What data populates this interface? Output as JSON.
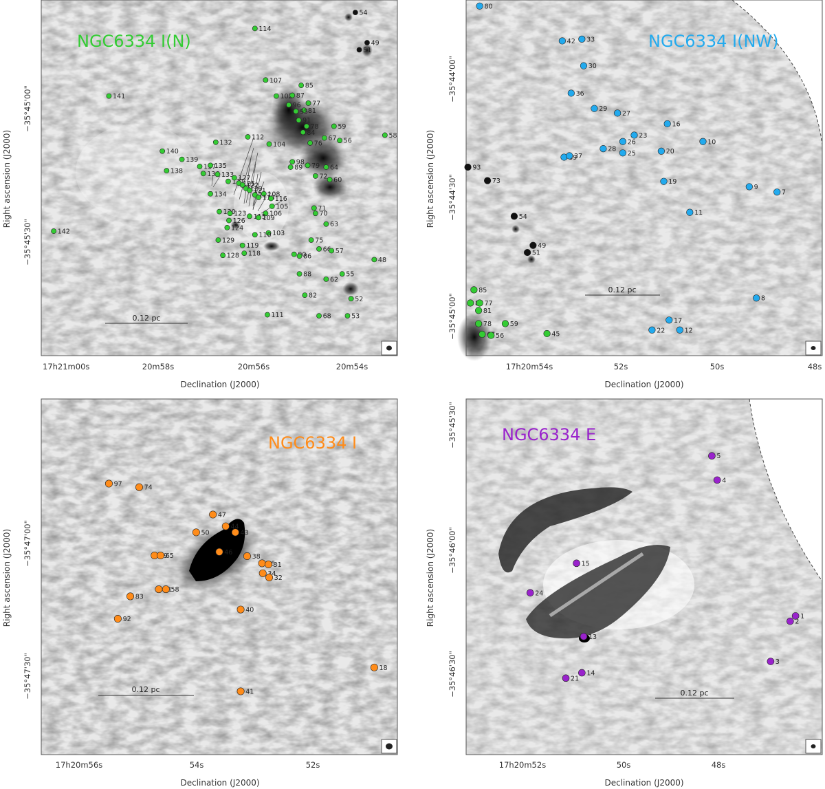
{
  "chart_data": [
    {
      "type": "scatter",
      "title": "NGC6334 I(N)",
      "title_color": "#33cc33",
      "marker_color": "#33cc33",
      "xlabel": "Declination (J2000)",
      "ylabel": "Right ascension (J2000)",
      "x_ticks": [
        "17h21m00s",
        "20m58s",
        "20m56s",
        "20m54s"
      ],
      "y_ticks": [
        "−35°45'00\"",
        "−35°45'30\""
      ],
      "scale_bar": "0.12 pc",
      "sources": [
        {
          "id": "54",
          "u": 0.882,
          "v": 0.035,
          "c": "#111111"
        },
        {
          "id": "49",
          "u": 0.915,
          "v": 0.12,
          "c": "#111111"
        },
        {
          "id": "51",
          "u": 0.893,
          "v": 0.14,
          "c": "#111111"
        },
        {
          "id": "114",
          "u": 0.6,
          "v": 0.08,
          "c": "#33cc33"
        },
        {
          "id": "141",
          "u": 0.19,
          "v": 0.27,
          "c": "#33cc33"
        },
        {
          "id": "107",
          "u": 0.63,
          "v": 0.225,
          "c": "#33cc33"
        },
        {
          "id": "85",
          "u": 0.73,
          "v": 0.24,
          "c": "#33cc33"
        },
        {
          "id": "102",
          "u": 0.66,
          "v": 0.27,
          "c": "#33cc33"
        },
        {
          "id": "87",
          "u": 0.705,
          "v": 0.268,
          "c": "#33cc33"
        },
        {
          "id": "77",
          "u": 0.75,
          "v": 0.29,
          "c": "#33cc33"
        },
        {
          "id": "96",
          "u": 0.695,
          "v": 0.295,
          "c": "#33cc33"
        },
        {
          "id": "81",
          "u": 0.738,
          "v": 0.31,
          "c": "#33cc33"
        },
        {
          "id": "95",
          "u": 0.715,
          "v": 0.313,
          "c": "#33cc33"
        },
        {
          "id": "91",
          "u": 0.723,
          "v": 0.338,
          "c": "#33cc33"
        },
        {
          "id": "78",
          "u": 0.745,
          "v": 0.355,
          "c": "#33cc33"
        },
        {
          "id": "59",
          "u": 0.822,
          "v": 0.355,
          "c": "#33cc33"
        },
        {
          "id": "84",
          "u": 0.735,
          "v": 0.372,
          "c": "#33cc33"
        },
        {
          "id": "67",
          "u": 0.795,
          "v": 0.388,
          "c": "#33cc33"
        },
        {
          "id": "56",
          "u": 0.838,
          "v": 0.395,
          "c": "#33cc33"
        },
        {
          "id": "76",
          "u": 0.755,
          "v": 0.402,
          "c": "#33cc33"
        },
        {
          "id": "58",
          "u": 0.965,
          "v": 0.38,
          "c": "#33cc33"
        },
        {
          "id": "112",
          "u": 0.58,
          "v": 0.385,
          "c": "#33cc33"
        },
        {
          "id": "104",
          "u": 0.64,
          "v": 0.405,
          "c": "#33cc33"
        },
        {
          "id": "132",
          "u": 0.49,
          "v": 0.4,
          "c": "#33cc33"
        },
        {
          "id": "140",
          "u": 0.34,
          "v": 0.425,
          "c": "#33cc33"
        },
        {
          "id": "139",
          "u": 0.395,
          "v": 0.448,
          "c": "#33cc33"
        },
        {
          "id": "98",
          "u": 0.705,
          "v": 0.455,
          "c": "#33cc33"
        },
        {
          "id": "79",
          "u": 0.748,
          "v": 0.465,
          "c": "#33cc33"
        },
        {
          "id": "89",
          "u": 0.7,
          "v": 0.47,
          "c": "#33cc33"
        },
        {
          "id": "64",
          "u": 0.8,
          "v": 0.47,
          "c": "#33cc33"
        },
        {
          "id": "72",
          "u": 0.77,
          "v": 0.495,
          "c": "#33cc33"
        },
        {
          "id": "60",
          "u": 0.81,
          "v": 0.505,
          "c": "#33cc33"
        },
        {
          "id": "137",
          "u": 0.445,
          "v": 0.468,
          "c": "#33cc33"
        },
        {
          "id": "135",
          "u": 0.475,
          "v": 0.465,
          "c": "#33cc33"
        },
        {
          "id": "138",
          "u": 0.352,
          "v": 0.48,
          "c": "#33cc33"
        },
        {
          "id": "136",
          "u": 0.455,
          "v": 0.488,
          "c": "#33cc33"
        },
        {
          "id": "133",
          "u": 0.495,
          "v": 0.49,
          "c": "#33cc33"
        },
        {
          "id": "131",
          "u": 0.525,
          "v": 0.51,
          "c": "#33cc33"
        },
        {
          "id": "127",
          "u": 0.542,
          "v": 0.5,
          "c": "#33cc33"
        },
        {
          "id": "125",
          "u": 0.555,
          "v": 0.515,
          "c": "#33cc33"
        },
        {
          "id": "122",
          "u": 0.565,
          "v": 0.52,
          "c": "#33cc33"
        },
        {
          "id": "120",
          "u": 0.575,
          "v": 0.53,
          "c": "#33cc33"
        },
        {
          "id": "121",
          "u": 0.585,
          "v": 0.535,
          "c": "#33cc33"
        },
        {
          "id": "117",
          "u": 0.6,
          "v": 0.548,
          "c": "#33cc33"
        },
        {
          "id": "108",
          "u": 0.625,
          "v": 0.545,
          "c": "#33cc33"
        },
        {
          "id": "113",
          "u": 0.61,
          "v": 0.555,
          "c": "#33cc33"
        },
        {
          "id": "116",
          "u": 0.645,
          "v": 0.558,
          "c": "#33cc33"
        },
        {
          "id": "134",
          "u": 0.475,
          "v": 0.545,
          "c": "#33cc33"
        },
        {
          "id": "105",
          "u": 0.648,
          "v": 0.58,
          "c": "#33cc33"
        },
        {
          "id": "71",
          "u": 0.766,
          "v": 0.585,
          "c": "#33cc33"
        },
        {
          "id": "70",
          "u": 0.77,
          "v": 0.6,
          "c": "#33cc33"
        },
        {
          "id": "130",
          "u": 0.5,
          "v": 0.595,
          "c": "#33cc33"
        },
        {
          "id": "123",
          "u": 0.53,
          "v": 0.6,
          "c": "#33cc33"
        },
        {
          "id": "106",
          "u": 0.63,
          "v": 0.6,
          "c": "#33cc33"
        },
        {
          "id": "126",
          "u": 0.527,
          "v": 0.62,
          "c": "#33cc33"
        },
        {
          "id": "115",
          "u": 0.585,
          "v": 0.608,
          "c": "#33cc33"
        },
        {
          "id": "109",
          "u": 0.61,
          "v": 0.612,
          "c": "#33cc33"
        },
        {
          "id": "63",
          "u": 0.8,
          "v": 0.63,
          "c": "#33cc33"
        },
        {
          "id": "124",
          "u": 0.522,
          "v": 0.64,
          "c": "#33cc33"
        },
        {
          "id": "103",
          "u": 0.638,
          "v": 0.655,
          "c": "#33cc33"
        },
        {
          "id": "110",
          "u": 0.6,
          "v": 0.66,
          "c": "#33cc33"
        },
        {
          "id": "129",
          "u": 0.497,
          "v": 0.675,
          "c": "#33cc33"
        },
        {
          "id": "75",
          "u": 0.758,
          "v": 0.675,
          "c": "#33cc33"
        },
        {
          "id": "119",
          "u": 0.565,
          "v": 0.69,
          "c": "#33cc33"
        },
        {
          "id": "66",
          "u": 0.78,
          "v": 0.7,
          "c": "#33cc33"
        },
        {
          "id": "57",
          "u": 0.815,
          "v": 0.705,
          "c": "#33cc33"
        },
        {
          "id": "128",
          "u": 0.51,
          "v": 0.718,
          "c": "#33cc33"
        },
        {
          "id": "118",
          "u": 0.57,
          "v": 0.712,
          "c": "#33cc33"
        },
        {
          "id": "90",
          "u": 0.71,
          "v": 0.715,
          "c": "#33cc33"
        },
        {
          "id": "86",
          "u": 0.725,
          "v": 0.72,
          "c": "#33cc33"
        },
        {
          "id": "48",
          "u": 0.935,
          "v": 0.73,
          "c": "#33cc33"
        },
        {
          "id": "88",
          "u": 0.725,
          "v": 0.77,
          "c": "#33cc33"
        },
        {
          "id": "62",
          "u": 0.8,
          "v": 0.785,
          "c": "#33cc33"
        },
        {
          "id": "55",
          "u": 0.845,
          "v": 0.77,
          "c": "#33cc33"
        },
        {
          "id": "82",
          "u": 0.74,
          "v": 0.83,
          "c": "#33cc33"
        },
        {
          "id": "52",
          "u": 0.87,
          "v": 0.84,
          "c": "#33cc33"
        },
        {
          "id": "111",
          "u": 0.635,
          "v": 0.885,
          "c": "#33cc33"
        },
        {
          "id": "68",
          "u": 0.78,
          "v": 0.888,
          "c": "#33cc33"
        },
        {
          "id": "53",
          "u": 0.86,
          "v": 0.888,
          "c": "#33cc33"
        },
        {
          "id": "142",
          "u": 0.035,
          "v": 0.65,
          "c": "#33cc33"
        }
      ]
    },
    {
      "type": "scatter",
      "title": "NGC6334 I(NW)",
      "title_color": "#22aaee",
      "marker_color": "#22aaee",
      "xlabel": "Declination (J2000)",
      "ylabel": "Right ascension (J2000)",
      "x_ticks": [
        "17h20m54s",
        "52s",
        "50s",
        "48s"
      ],
      "y_ticks": [
        "−35°44'00\"",
        "−35°44'30\"",
        "−35°45'00\""
      ],
      "scale_bar": "0.12 pc",
      "sources": [
        {
          "id": "80",
          "u": 0.038,
          "v": 0.017,
          "c": "#22aaee"
        },
        {
          "id": "42",
          "u": 0.27,
          "v": 0.115,
          "c": "#22aaee"
        },
        {
          "id": "33",
          "u": 0.325,
          "v": 0.11,
          "c": "#22aaee"
        },
        {
          "id": "30",
          "u": 0.33,
          "v": 0.185,
          "c": "#22aaee"
        },
        {
          "id": "36",
          "u": 0.295,
          "v": 0.262,
          "c": "#22aaee"
        },
        {
          "id": "29",
          "u": 0.36,
          "v": 0.305,
          "c": "#22aaee"
        },
        {
          "id": "27",
          "u": 0.425,
          "v": 0.318,
          "c": "#22aaee"
        },
        {
          "id": "16",
          "u": 0.565,
          "v": 0.348,
          "c": "#22aaee"
        },
        {
          "id": "23",
          "u": 0.472,
          "v": 0.38,
          "c": "#22aaee"
        },
        {
          "id": "26",
          "u": 0.44,
          "v": 0.398,
          "c": "#22aaee"
        },
        {
          "id": "10",
          "u": 0.665,
          "v": 0.398,
          "c": "#22aaee"
        },
        {
          "id": "28",
          "u": 0.385,
          "v": 0.418,
          "c": "#22aaee"
        },
        {
          "id": "25",
          "u": 0.44,
          "v": 0.43,
          "c": "#22aaee"
        },
        {
          "id": "20",
          "u": 0.548,
          "v": 0.425,
          "c": "#22aaee"
        },
        {
          "id": "39",
          "u": 0.275,
          "v": 0.442,
          "c": "#22aaee"
        },
        {
          "id": "37",
          "u": 0.29,
          "v": 0.438,
          "c": "#22aaee"
        },
        {
          "id": "19",
          "u": 0.555,
          "v": 0.51,
          "c": "#22aaee"
        },
        {
          "id": "9",
          "u": 0.795,
          "v": 0.525,
          "c": "#22aaee"
        },
        {
          "id": "7",
          "u": 0.873,
          "v": 0.54,
          "c": "#22aaee"
        },
        {
          "id": "11",
          "u": 0.628,
          "v": 0.597,
          "c": "#22aaee"
        },
        {
          "id": "8",
          "u": 0.815,
          "v": 0.838,
          "c": "#22aaee"
        },
        {
          "id": "17",
          "u": 0.57,
          "v": 0.9,
          "c": "#22aaee"
        },
        {
          "id": "22",
          "u": 0.522,
          "v": 0.928,
          "c": "#22aaee"
        },
        {
          "id": "12",
          "u": 0.6,
          "v": 0.928,
          "c": "#22aaee"
        },
        {
          "id": "93",
          "u": 0.005,
          "v": 0.47,
          "c": "#111111"
        },
        {
          "id": "73",
          "u": 0.06,
          "v": 0.508,
          "c": "#111111"
        },
        {
          "id": "54",
          "u": 0.135,
          "v": 0.608,
          "c": "#111111"
        },
        {
          "id": "49",
          "u": 0.188,
          "v": 0.69,
          "c": "#111111"
        },
        {
          "id": "51",
          "u": 0.172,
          "v": 0.71,
          "c": "#111111"
        },
        {
          "id": "85",
          "u": 0.022,
          "v": 0.815,
          "c": "#33cc33"
        },
        {
          "id": "87",
          "u": 0.012,
          "v": 0.852,
          "c": "#33cc33"
        },
        {
          "id": "77",
          "u": 0.038,
          "v": 0.852,
          "c": "#33cc33"
        },
        {
          "id": "81",
          "u": 0.035,
          "v": 0.873,
          "c": "#33cc33"
        },
        {
          "id": "78",
          "u": 0.035,
          "v": 0.91,
          "c": "#33cc33"
        },
        {
          "id": "59",
          "u": 0.11,
          "v": 0.91,
          "c": "#33cc33"
        },
        {
          "id": "67",
          "u": 0.045,
          "v": 0.94,
          "c": "#33cc33"
        },
        {
          "id": "56",
          "u": 0.07,
          "v": 0.943,
          "c": "#33cc33"
        },
        {
          "id": "45",
          "u": 0.227,
          "v": 0.938,
          "c": "#33cc33"
        }
      ]
    },
    {
      "type": "scatter",
      "title": "NGC6334 I",
      "title_color": "#ff8c1a",
      "marker_color": "#ff8c1a",
      "xlabel": "Declination (J2000)",
      "ylabel": "Right ascension (J2000)",
      "x_ticks": [
        "17h20m56s",
        "54s",
        "52s"
      ],
      "y_ticks": [
        "−35°47'00\"",
        "−35°47'30\""
      ],
      "scale_bar": "0.12 pc",
      "sources": [
        {
          "id": "97",
          "u": 0.19,
          "v": 0.238,
          "c": "#ff8c1a"
        },
        {
          "id": "74",
          "u": 0.275,
          "v": 0.248,
          "c": "#ff8c1a"
        },
        {
          "id": "47",
          "u": 0.482,
          "v": 0.325,
          "c": "#ff8c1a"
        },
        {
          "id": "44",
          "u": 0.518,
          "v": 0.358,
          "c": "#ff8c1a"
        },
        {
          "id": "43",
          "u": 0.545,
          "v": 0.375,
          "c": "#ff8c1a"
        },
        {
          "id": "50",
          "u": 0.435,
          "v": 0.375,
          "c": "#ff8c1a"
        },
        {
          "id": "46",
          "u": 0.5,
          "v": 0.43,
          "c": "#ff8c1a"
        },
        {
          "id": "38",
          "u": 0.578,
          "v": 0.442,
          "c": "#ff8c1a"
        },
        {
          "id": "35",
          "u": 0.62,
          "v": 0.462,
          "c": "#ff8c1a"
        },
        {
          "id": "69",
          "u": 0.318,
          "v": 0.44,
          "c": "#ff8c1a"
        },
        {
          "id": "65",
          "u": 0.335,
          "v": 0.44,
          "c": "#ff8c1a"
        },
        {
          "id": "31",
          "u": 0.638,
          "v": 0.465,
          "c": "#ff8c1a"
        },
        {
          "id": "34",
          "u": 0.622,
          "v": 0.49,
          "c": "#ff8c1a"
        },
        {
          "id": "32",
          "u": 0.64,
          "v": 0.502,
          "c": "#ff8c1a"
        },
        {
          "id": "61",
          "u": 0.33,
          "v": 0.535,
          "c": "#ff8c1a"
        },
        {
          "id": "58",
          "u": 0.35,
          "v": 0.535,
          "c": "#ff8c1a"
        },
        {
          "id": "83",
          "u": 0.25,
          "v": 0.555,
          "c": "#ff8c1a"
        },
        {
          "id": "40",
          "u": 0.56,
          "v": 0.592,
          "c": "#ff8c1a"
        },
        {
          "id": "92",
          "u": 0.215,
          "v": 0.618,
          "c": "#ff8c1a"
        },
        {
          "id": "18",
          "u": 0.935,
          "v": 0.755,
          "c": "#ff8c1a"
        },
        {
          "id": "41",
          "u": 0.56,
          "v": 0.822,
          "c": "#ff8c1a"
        }
      ]
    },
    {
      "type": "scatter",
      "title": "NGC6334 E",
      "title_color": "#9922cc",
      "marker_color": "#9922cc",
      "xlabel": "Declination (J2000)",
      "ylabel": "Right ascension (J2000)",
      "x_ticks": [
        "17h20m52s",
        "50s",
        "48s"
      ],
      "y_ticks": [
        "−35°45'30\"",
        "−35°46'00\"",
        "−35°46'30\""
      ],
      "scale_bar": "0.12 pc",
      "sources": [
        {
          "id": "5",
          "u": 0.69,
          "v": 0.16,
          "c": "#9922cc"
        },
        {
          "id": "4",
          "u": 0.705,
          "v": 0.228,
          "c": "#9922cc"
        },
        {
          "id": "15",
          "u": 0.31,
          "v": 0.462,
          "c": "#9922cc"
        },
        {
          "id": "24",
          "u": 0.18,
          "v": 0.545,
          "c": "#9922cc"
        },
        {
          "id": "1",
          "u": 0.925,
          "v": 0.61,
          "c": "#9922cc"
        },
        {
          "id": "2",
          "u": 0.91,
          "v": 0.625,
          "c": "#9922cc"
        },
        {
          "id": "13",
          "u": 0.33,
          "v": 0.668,
          "c": "#9922cc"
        },
        {
          "id": "3",
          "u": 0.855,
          "v": 0.738,
          "c": "#9922cc"
        },
        {
          "id": "14",
          "u": 0.325,
          "v": 0.77,
          "c": "#9922cc"
        },
        {
          "id": "21",
          "u": 0.28,
          "v": 0.785,
          "c": "#9922cc"
        }
      ]
    }
  ]
}
